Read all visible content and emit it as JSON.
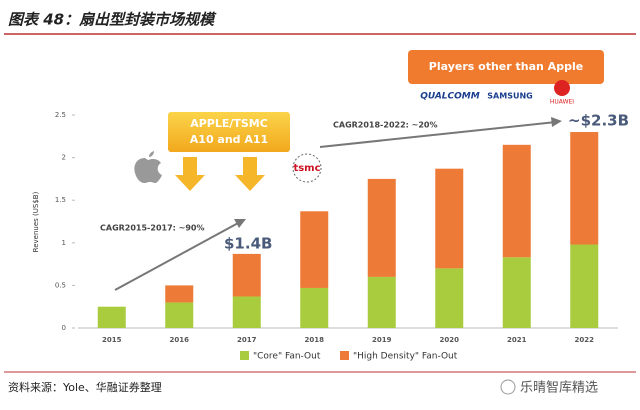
{
  "chart_data": {
    "type": "stacked_bar",
    "title": "图表 48：扇出型封装市场规模",
    "y_label": "Revenues (US$B)",
    "categories": [
      "2015",
      "2016",
      "2017",
      "2018",
      "2019",
      "2020",
      "2021",
      "2022"
    ],
    "series": [
      {
        "name": "\"Core\" Fan-Out",
        "color": "#a9cc3e",
        "values": [
          0.25,
          0.3,
          0.37,
          0.47,
          0.6,
          0.7,
          0.83,
          0.98
        ]
      },
      {
        "name": "\"High Density\" Fan-Out",
        "color": "#ee7a37",
        "values": [
          0,
          0.2,
          0.5,
          0.9,
          1.15,
          1.17,
          1.32,
          1.32
        ]
      }
    ],
    "ylim": [
      0,
      2.5
    ],
    "yticks": [
      0,
      0.5,
      1,
      1.5,
      2,
      2.5
    ],
    "grid": false,
    "annotations": [
      "APPLE/TSMC",
      "A10 and A11",
      "Players other than Apple",
      "CAGR2015-2017: ~90%",
      "$1.4B",
      "CAGR2018-2022: ~20%",
      "~$2.3B"
    ],
    "logos": [
      "QUALCOMM",
      "SAMSUNG",
      "HUAWEI",
      "tsmc"
    ]
  },
  "source": "资料来源：Yole、华融证券整理",
  "watermark": "乐晴智库精选"
}
